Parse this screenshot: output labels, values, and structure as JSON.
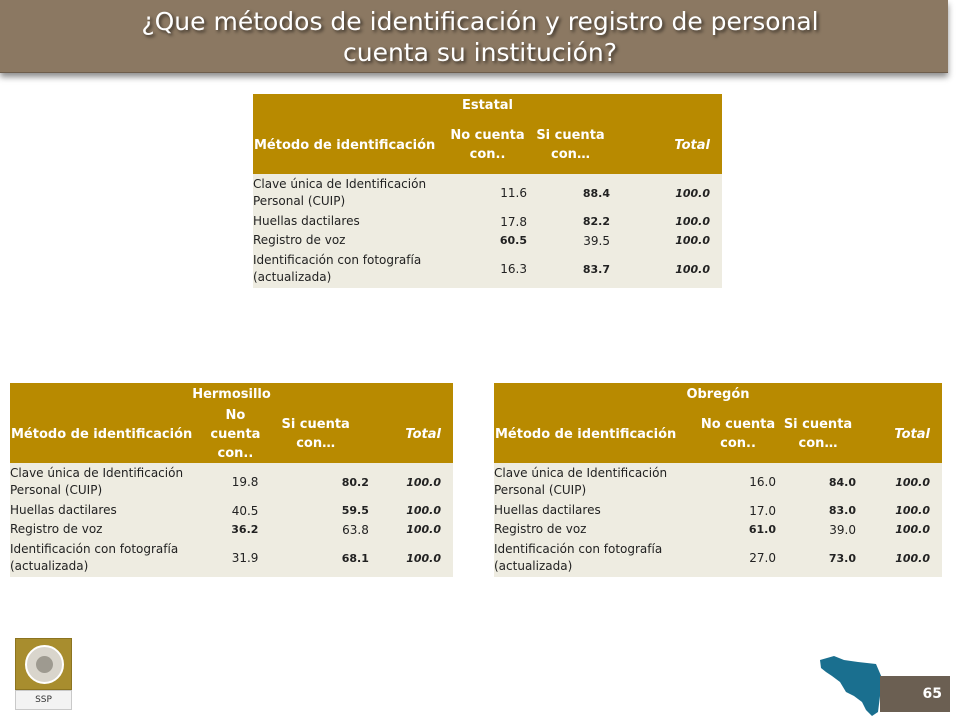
{
  "title": {
    "line1": "¿Que métodos de identificación y registro de personal",
    "line2": "cuenta su institución?"
  },
  "tables": [
    {
      "name": "Estatal",
      "headers": [
        "Método de identificación",
        "No cuenta con..",
        "Si cuenta con…",
        "Total"
      ],
      "rows": [
        {
          "label": "Clave única de Identificación Personal (CUIP)",
          "no": "11.6",
          "si": "88.4",
          "total": "100.0",
          "bold": "si"
        },
        {
          "label": "Huellas dactilares",
          "no": "17.8",
          "si": "82.2",
          "total": "100.0",
          "bold": "si"
        },
        {
          "label": "Registro de voz",
          "no": "60.5",
          "si": "39.5",
          "total": "100.0",
          "bold": "no"
        },
        {
          "label": "Identificación con fotografía (actualizada)",
          "no": "16.3",
          "si": "83.7",
          "total": "100.0",
          "bold": "si"
        }
      ]
    },
    {
      "name": "Hermosillo",
      "headers": [
        "Método de identificación",
        "No cuenta con..",
        "Si cuenta con…",
        "Total"
      ],
      "rows": [
        {
          "label": "Clave única de Identificación Personal (CUIP)",
          "no": "19.8",
          "si": "80.2",
          "total": "100.0",
          "bold": "si"
        },
        {
          "label": "Huellas dactilares",
          "no": "40.5",
          "si": "59.5",
          "total": "100.0",
          "bold": "si"
        },
        {
          "label": "Registro de voz",
          "no": "36.2",
          "si": "63.8",
          "total": "100.0",
          "bold": "no"
        },
        {
          "label": "Identificación con fotografía (actualizada)",
          "no": "31.9",
          "si": "68.1",
          "total": "100.0",
          "bold": "si"
        }
      ]
    },
    {
      "name": "Obregón",
      "headers": [
        "Método de identificación",
        "No cuenta con..",
        "Si cuenta con…",
        "Total"
      ],
      "rows": [
        {
          "label": "Clave única de Identificación Personal (CUIP)",
          "no": "16.0",
          "si": "84.0",
          "total": "100.0",
          "bold": "si"
        },
        {
          "label": "Huellas dactilares",
          "no": "17.0",
          "si": "83.0",
          "total": "100.0",
          "bold": "si"
        },
        {
          "label": "Registro de voz",
          "no": "61.0",
          "si": "39.0",
          "total": "100.0",
          "bold": "no"
        },
        {
          "label": "Identificación con fotografía (actualizada)",
          "no": "27.0",
          "si": "73.0",
          "total": "100.0",
          "bold": "si"
        }
      ]
    }
  ],
  "logo": {
    "text": "SSP"
  },
  "map": {
    "icon": "sonora-map-icon",
    "color": "#1a6f8f"
  },
  "page_number": "65",
  "colors": {
    "banner": "#8b7862",
    "table_header": "#b88a00",
    "table_body": "#eeece1",
    "page_box": "#6b5f52"
  }
}
